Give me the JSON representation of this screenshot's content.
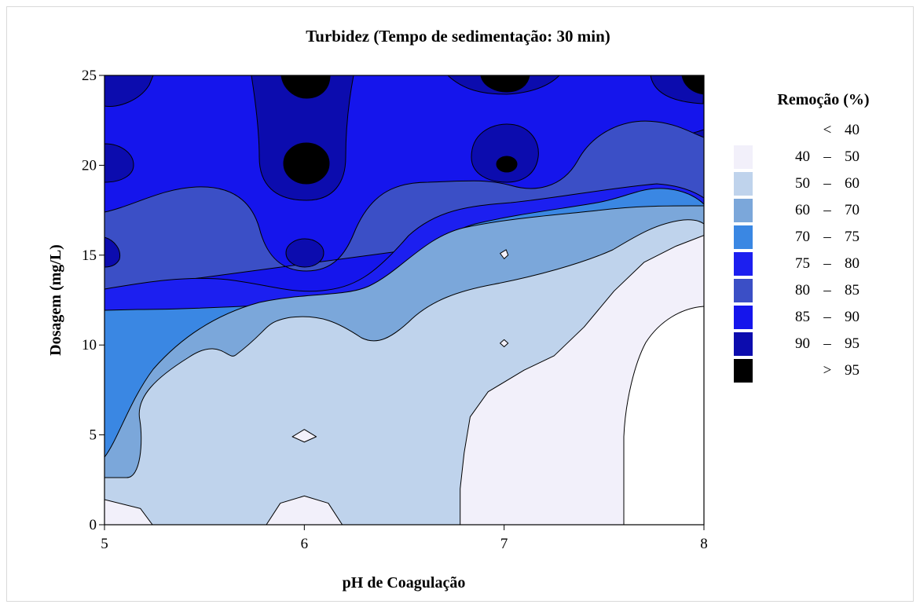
{
  "chart_data": {
    "type": "contour",
    "title": "Turbidez (Tempo de sedimentação: 30 min)",
    "xlabel": "pH de Coagulação",
    "ylabel": "Dosagem (mg/L)",
    "xlim": [
      5,
      8
    ],
    "ylim": [
      0,
      25
    ],
    "x_ticks": [
      "5",
      "6",
      "7",
      "8"
    ],
    "y_ticks": [
      "0",
      "5",
      "10",
      "15",
      "20",
      "25"
    ],
    "legend": {
      "title": "Remoção (%)",
      "placement": "right",
      "items": [
        {
          "low": "",
          "sep": "<",
          "high": "40",
          "color": "#ffffff"
        },
        {
          "low": "40",
          "sep": "–",
          "high": "50",
          "color": "#f2f0fa"
        },
        {
          "low": "50",
          "sep": "–",
          "high": "60",
          "color": "#bfd3ec"
        },
        {
          "low": "60",
          "sep": "–",
          "high": "70",
          "color": "#7ba7da"
        },
        {
          "low": "70",
          "sep": "–",
          "high": "75",
          "color": "#3a87e3"
        },
        {
          "low": "75",
          "sep": "–",
          "high": "80",
          "color": "#1c1ff0"
        },
        {
          "low": "80",
          "sep": "–",
          "high": "85",
          "color": "#3b4fc6"
        },
        {
          "low": "85",
          "sep": "–",
          "high": "90",
          "color": "#1515ec"
        },
        {
          "low": "90",
          "sep": "–",
          "high": "95",
          "color": "#0c0cae"
        },
        {
          "low": "",
          "sep": ">",
          "high": "95",
          "color": "#000000"
        }
      ]
    },
    "regions": [
      {
        "level": "40-50",
        "points": [
          [
            5,
            0
          ],
          [
            5.24,
            0
          ],
          [
            5.18,
            0.9
          ],
          [
            5,
            1.4
          ]
        ]
      },
      {
        "level": "40-50",
        "points": [
          [
            5.81,
            0
          ],
          [
            6.19,
            0
          ],
          [
            6.12,
            1.2
          ],
          [
            6,
            1.6
          ],
          [
            5.88,
            1.2
          ]
        ]
      },
      {
        "level": "40-50",
        "points": [
          [
            5.94,
            4.9
          ],
          [
            6.0,
            5.3
          ],
          [
            6.06,
            4.9
          ],
          [
            6.0,
            4.6
          ]
        ]
      },
      {
        "level": "40-50",
        "points": [
          [
            6.78,
            0
          ],
          [
            8,
            0
          ],
          [
            8,
            16.1
          ],
          [
            7.86,
            15.5
          ],
          [
            7.7,
            14.6
          ],
          [
            7.55,
            13
          ],
          [
            7.4,
            11
          ],
          [
            7.25,
            9.4
          ],
          [
            7.1,
            8.6
          ],
          [
            6.92,
            7.4
          ],
          [
            6.83,
            6
          ],
          [
            6.8,
            4
          ],
          [
            6.78,
            2
          ]
        ]
      },
      {
        "level": "40-50",
        "points": [
          [
            6.98,
            10.1
          ],
          [
            7.0,
            10.3
          ],
          [
            7.02,
            10.1
          ],
          [
            7.0,
            9.9
          ]
        ]
      },
      {
        "level": "40-50",
        "points": [
          [
            6.98,
            15.1
          ],
          [
            7.01,
            15.3
          ],
          [
            7.02,
            15.0
          ],
          [
            7.0,
            14.8
          ]
        ]
      }
    ]
  }
}
